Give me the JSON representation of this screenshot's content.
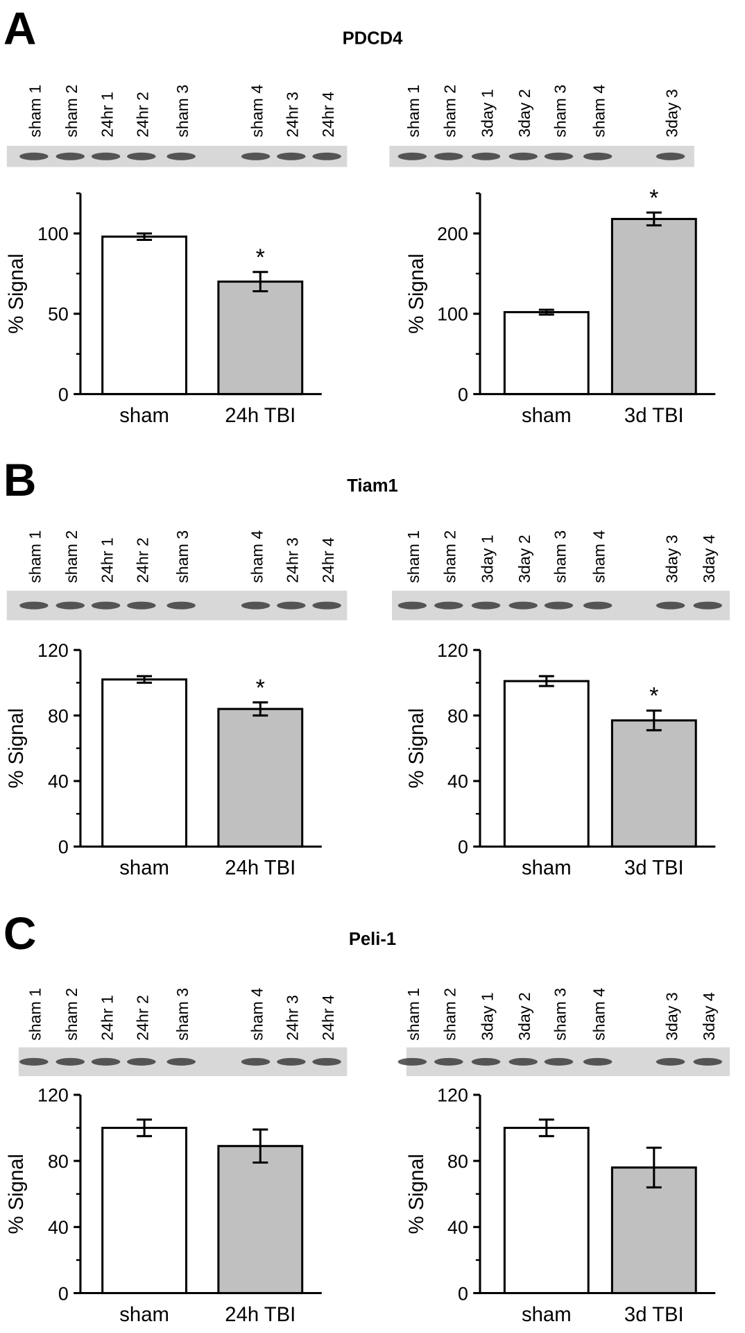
{
  "panels": [
    {
      "letter": "A",
      "title": "PDCD4",
      "blots": [
        {
          "lanes": [
            "sham 1",
            "sham 2",
            "24hr 1",
            "24hr 2",
            "sham 3",
            "sham 4",
            "24hr 3",
            "24hr 4"
          ]
        },
        {
          "lanes": [
            "sham 1",
            "sham 2",
            "3day 1",
            "3day 2",
            "sham 3",
            "sham 4",
            "3day 3"
          ]
        }
      ]
    },
    {
      "letter": "B",
      "title": "Tiam1",
      "blots": [
        {
          "lanes": [
            "sham 1",
            "sham 2",
            "24hr 1",
            "24hr 2",
            "sham 3",
            "sham 4",
            "24hr 3",
            "24hr 4"
          ]
        },
        {
          "lanes": [
            "sham 1",
            "sham 2",
            "3day 1",
            "3day 2",
            "sham 3",
            "sham 4",
            "3day 3",
            "3day 4"
          ]
        }
      ]
    },
    {
      "letter": "C",
      "title": "Peli-1",
      "blots": [
        {
          "lanes": [
            "sham 1",
            "sham 2",
            "24hr 1",
            "24hr 2",
            "sham 3",
            "sham 4",
            "24hr 3",
            "24hr 4"
          ]
        },
        {
          "lanes": [
            "sham 1",
            "sham 2",
            "3day 1",
            "3day 2",
            "sham 3",
            "sham 4",
            "3day 3",
            "3day 4"
          ]
        }
      ]
    }
  ],
  "chart_data": [
    {
      "type": "bar",
      "ylabel": "% Signal",
      "categories": [
        "sham",
        "24h TBI"
      ],
      "values": [
        98,
        70
      ],
      "errors": [
        2,
        6
      ],
      "significance": [
        null,
        "*"
      ],
      "colors": [
        "#ffffff",
        "#c0c0c0"
      ],
      "ylim": [
        0,
        125
      ],
      "yticks": [
        0,
        50,
        100
      ],
      "minor_yticks": [
        25,
        75,
        125
      ]
    },
    {
      "type": "bar",
      "ylabel": "% Signal",
      "categories": [
        "sham",
        "3d TBI"
      ],
      "values": [
        102,
        218
      ],
      "errors": [
        3,
        8
      ],
      "significance": [
        null,
        "*"
      ],
      "colors": [
        "#ffffff",
        "#c0c0c0"
      ],
      "ylim": [
        0,
        250
      ],
      "yticks": [
        0,
        100,
        200
      ],
      "minor_yticks": [
        50,
        150,
        250
      ]
    },
    {
      "type": "bar",
      "ylabel": "% Signal",
      "categories": [
        "sham",
        "24h TBI"
      ],
      "values": [
        102,
        84
      ],
      "errors": [
        2,
        4
      ],
      "significance": [
        null,
        "*"
      ],
      "colors": [
        "#ffffff",
        "#c0c0c0"
      ],
      "ylim": [
        0,
        120
      ],
      "yticks": [
        0,
        40,
        80,
        120
      ],
      "minor_yticks": [
        20,
        60,
        100
      ]
    },
    {
      "type": "bar",
      "ylabel": "% Signal",
      "categories": [
        "sham",
        "3d TBI"
      ],
      "values": [
        101,
        77
      ],
      "errors": [
        3,
        6
      ],
      "significance": [
        null,
        "*"
      ],
      "colors": [
        "#ffffff",
        "#c0c0c0"
      ],
      "ylim": [
        0,
        120
      ],
      "yticks": [
        0,
        40,
        80,
        120
      ],
      "minor_yticks": [
        20,
        60,
        100
      ]
    },
    {
      "type": "bar",
      "ylabel": "% Signal",
      "categories": [
        "sham",
        "24h TBI"
      ],
      "values": [
        100,
        89
      ],
      "errors": [
        5,
        10
      ],
      "significance": [
        null,
        null
      ],
      "colors": [
        "#ffffff",
        "#c0c0c0"
      ],
      "ylim": [
        0,
        120
      ],
      "yticks": [
        0,
        40,
        80,
        120
      ],
      "minor_yticks": [
        20,
        60,
        100
      ]
    },
    {
      "type": "bar",
      "ylabel": "% Signal",
      "categories": [
        "sham",
        "3d TBI"
      ],
      "values": [
        100,
        76
      ],
      "errors": [
        5,
        12
      ],
      "significance": [
        null,
        null
      ],
      "colors": [
        "#ffffff",
        "#c0c0c0"
      ],
      "ylim": [
        0,
        120
      ],
      "yticks": [
        0,
        40,
        80,
        120
      ],
      "minor_yticks": [
        20,
        60,
        100
      ]
    }
  ]
}
